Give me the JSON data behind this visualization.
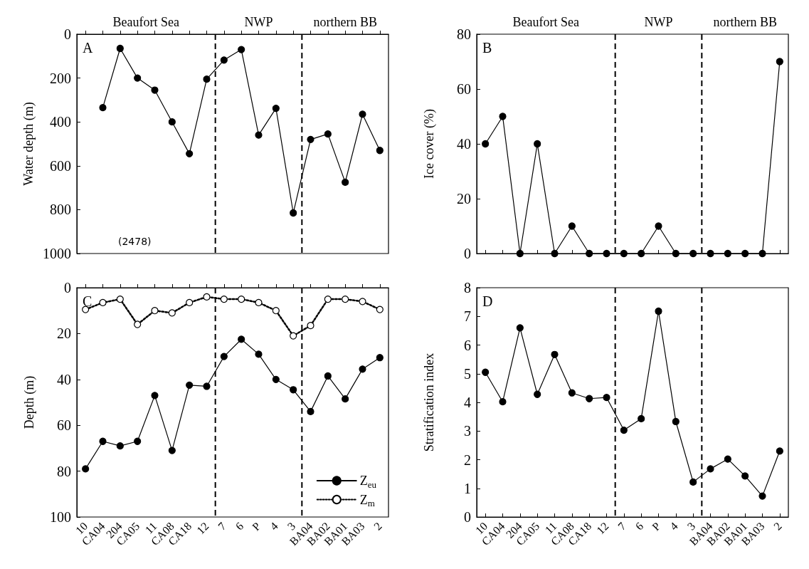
{
  "chart_data": [
    {
      "type": "line",
      "title": "A",
      "ylabel": "Water depth (m)",
      "categories": [
        null,
        null,
        null,
        null,
        null,
        null,
        null,
        null,
        null,
        null,
        null,
        null,
        null,
        null,
        null,
        null,
        null,
        null
      ],
      "ylim": [
        1000,
        0
      ],
      "yticks": [
        0,
        200,
        400,
        600,
        800,
        1000
      ],
      "tick_labels": "y",
      "marker": "circle",
      "series": [
        {
          "color": "#000000",
          "values": [
            null,
            335,
            65,
            200,
            255,
            400,
            545,
            205,
            118,
            70,
            460,
            338,
            815,
            480,
            455,
            675,
            365,
            530
          ]
        }
      ],
      "annotations": [
        "Beaufort Sea",
        "NWP",
        "northern BB",
        "(2478)"
      ]
    },
    {
      "type": "line",
      "title": "B",
      "ylabel": "Ice cover (%)",
      "categories": [
        null,
        null,
        null,
        null,
        null,
        null,
        null,
        null,
        null,
        null,
        null,
        null,
        null,
        null,
        null,
        null,
        null,
        null
      ],
      "ylim": [
        0,
        80
      ],
      "yticks": [
        0,
        20,
        40,
        60,
        80
      ],
      "tick_labels": "y",
      "marker": "circle",
      "series": [
        {
          "color": "#000000",
          "values": [
            40,
            50,
            0,
            40,
            0,
            10,
            0,
            0,
            0,
            0,
            10,
            0,
            0,
            0,
            0,
            0,
            0,
            70
          ]
        }
      ],
      "annotations": [
        "Beaufort Sea",
        "NWP",
        "northern BB"
      ]
    },
    {
      "type": "line",
      "title": "C",
      "ylabel": "Depth (m)",
      "categories": [
        "10",
        "CA04",
        "204",
        "CA05",
        "11",
        "CA08",
        "CA18",
        "12",
        "7",
        "6",
        "P",
        "4",
        "3",
        "BA04",
        "BA02",
        "BA01",
        "BA03",
        "2"
      ],
      "ylim": [
        100,
        0
      ],
      "yticks": [
        0,
        20,
        40,
        60,
        80,
        100
      ],
      "marker": "circle",
      "legend": "bottom right",
      "series": [
        {
          "name": "Z$_{eu}$",
          "color": "#000000",
          "line_style": "solid",
          "values": [
            79,
            67,
            69,
            67,
            47,
            71,
            42.5,
            43,
            30,
            22.5,
            29,
            40,
            44.5,
            54,
            38.5,
            48.5,
            35.5,
            30.5
          ]
        },
        {
          "name": "Z$_{m}$",
          "color": "#000000",
          "line_style": "dotted",
          "values": [
            9.5,
            6.5,
            5,
            16,
            10,
            11,
            6.5,
            4,
            5,
            5,
            6.5,
            10,
            21,
            16.5,
            5,
            5,
            6,
            9.5
          ]
        }
      ]
    },
    {
      "type": "line",
      "title": "D",
      "ylabel": "Stratification index",
      "categories": [
        "10",
        "CA04",
        "204",
        "CA05",
        "11",
        "CA08",
        "CA18",
        "12",
        "7",
        "6",
        "P",
        "4",
        "3",
        "BA04",
        "BA02",
        "BA01",
        "BA03",
        "2"
      ],
      "ylim": [
        0,
        8
      ],
      "yticks": [
        0,
        1,
        2,
        3,
        4,
        5,
        6,
        7,
        8
      ],
      "marker": "circle",
      "series": [
        {
          "color": "#000000",
          "values": [
            5.05,
            4.02,
            6.6,
            4.28,
            5.67,
            4.33,
            4.13,
            4.17,
            3.03,
            3.43,
            7.18,
            3.33,
            1.22,
            1.68,
            2.02,
            1.43,
            0.73,
            2.3
          ]
        }
      ]
    }
  ]
}
